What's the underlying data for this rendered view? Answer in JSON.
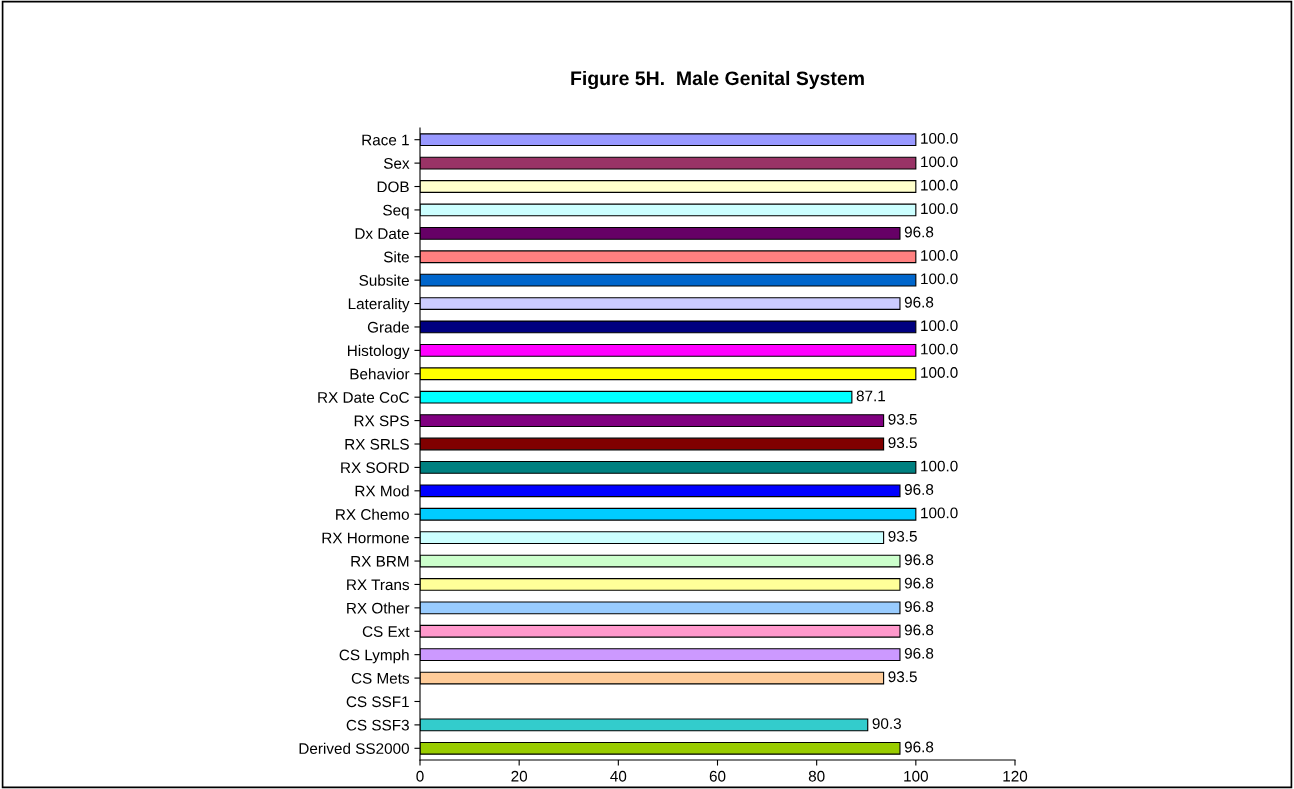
{
  "chart_data": {
    "type": "bar",
    "orientation": "horizontal",
    "title": "Figure 5H.  Male Genital System",
    "categories": [
      "Race 1",
      "Sex",
      "DOB",
      "Seq",
      "Dx Date",
      "Site",
      "Subsite",
      "Laterality",
      "Grade",
      "Histology",
      "Behavior",
      "RX Date CoC",
      "RX SPS",
      "RX SRLS",
      "RX SORD",
      "RX Mod",
      "RX Chemo",
      "RX Hormone",
      "RX BRM",
      "RX Trans",
      "RX Other",
      "CS Ext",
      "CS Lymph",
      "CS Mets",
      "CS SSF1",
      "CS SSF3",
      "Derived SS2000"
    ],
    "values": [
      100.0,
      100.0,
      100.0,
      100.0,
      96.8,
      100.0,
      100.0,
      96.8,
      100.0,
      100.0,
      100.0,
      87.1,
      93.5,
      93.5,
      100.0,
      96.8,
      100.0,
      93.5,
      96.8,
      96.8,
      96.8,
      96.8,
      96.8,
      93.5,
      null,
      90.3,
      96.8
    ],
    "value_labels": [
      "100.0",
      "100.0",
      "100.0",
      "100.0",
      "96.8",
      "100.0",
      "100.0",
      "96.8",
      "100.0",
      "100.0",
      "100.0",
      "87.1",
      "93.5",
      "93.5",
      "100.0",
      "96.8",
      "100.0",
      "93.5",
      "96.8",
      "96.8",
      "96.8",
      "96.8",
      "96.8",
      "93.5",
      null,
      "90.3",
      "96.8"
    ],
    "colors": [
      "#9999ff",
      "#993366",
      "#ffffcc",
      "#ccffff",
      "#660066",
      "#ff8080",
      "#0066cc",
      "#ccccff",
      "#000080",
      "#ff00ff",
      "#ffff00",
      "#00ffff",
      "#800080",
      "#800000",
      "#008080",
      "#0000ff",
      "#00ccff",
      "#ccffff",
      "#ccffcc",
      "#ffff99",
      "#99ccff",
      "#ff99cc",
      "#cc99ff",
      "#ffcc99",
      "#3366ff",
      "#33cccc",
      "#99cc00"
    ],
    "xlim": [
      0,
      120
    ],
    "xticks": [
      0,
      20,
      40,
      60,
      80,
      100,
      120
    ],
    "grid": false,
    "legend": false
  }
}
